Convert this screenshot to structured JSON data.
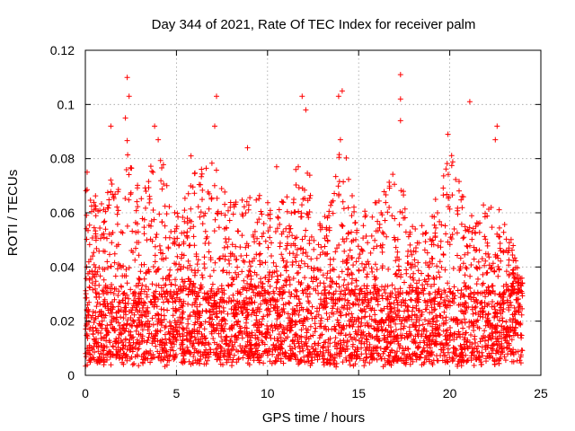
{
  "chart_data": {
    "type": "scatter",
    "title": "Day 344 of 2021, Rate Of TEC Index for receiver palm",
    "xlabel": "GPS time / hours",
    "ylabel": "ROTI / TECUs",
    "xlim": [
      0,
      25
    ],
    "ylim": [
      0,
      0.12
    ],
    "xticks": [
      0,
      5,
      10,
      15,
      20,
      25
    ],
    "xtick_labels": [
      "0",
      "5",
      "10",
      "15",
      "20",
      "25"
    ],
    "yticks": [
      0,
      0.02,
      0.04,
      0.06,
      0.08,
      0.1,
      0.12
    ],
    "ytick_labels": [
      "0",
      "0.02",
      "0.04",
      "0.06",
      "0.08",
      "0.1",
      "0.12"
    ],
    "grid": true,
    "marker": "+",
    "series": [
      {
        "name": "ROTI",
        "color": "#ff0000",
        "x_range": [
          0,
          24
        ],
        "typical_range": [
          0.005,
          0.03
        ],
        "peaks": [
          {
            "x": 2.3,
            "y": 0.11
          },
          {
            "x": 2.4,
            "y": 0.103
          },
          {
            "x": 2.2,
            "y": 0.095
          },
          {
            "x": 1.4,
            "y": 0.092
          },
          {
            "x": 3.8,
            "y": 0.092
          },
          {
            "x": 4.0,
            "y": 0.087
          },
          {
            "x": 7.2,
            "y": 0.103
          },
          {
            "x": 7.1,
            "y": 0.092
          },
          {
            "x": 8.9,
            "y": 0.084
          },
          {
            "x": 11.9,
            "y": 0.103
          },
          {
            "x": 12.1,
            "y": 0.098
          },
          {
            "x": 14.1,
            "y": 0.105
          },
          {
            "x": 13.9,
            "y": 0.103
          },
          {
            "x": 14.0,
            "y": 0.087
          },
          {
            "x": 17.3,
            "y": 0.111
          },
          {
            "x": 17.3,
            "y": 0.102
          },
          {
            "x": 17.3,
            "y": 0.094
          },
          {
            "x": 19.9,
            "y": 0.089
          },
          {
            "x": 21.1,
            "y": 0.101
          },
          {
            "x": 22.6,
            "y": 0.092
          },
          {
            "x": 22.5,
            "y": 0.087
          },
          {
            "x": 0.1,
            "y": 0.075
          },
          {
            "x": 5.8,
            "y": 0.081
          },
          {
            "x": 10.5,
            "y": 0.077
          }
        ],
        "activity_envelope": [
          {
            "x": 0,
            "y": 0.07
          },
          {
            "x": 1,
            "y": 0.065
          },
          {
            "x": 2,
            "y": 0.085
          },
          {
            "x": 2.5,
            "y": 0.09
          },
          {
            "x": 3,
            "y": 0.07
          },
          {
            "x": 4,
            "y": 0.085
          },
          {
            "x": 5,
            "y": 0.06
          },
          {
            "x": 6,
            "y": 0.075
          },
          {
            "x": 7,
            "y": 0.08
          },
          {
            "x": 8,
            "y": 0.065
          },
          {
            "x": 9,
            "y": 0.07
          },
          {
            "x": 10,
            "y": 0.065
          },
          {
            "x": 11,
            "y": 0.065
          },
          {
            "x": 12,
            "y": 0.085
          },
          {
            "x": 13,
            "y": 0.055
          },
          {
            "x": 14,
            "y": 0.09
          },
          {
            "x": 15,
            "y": 0.06
          },
          {
            "x": 16,
            "y": 0.065
          },
          {
            "x": 17,
            "y": 0.08
          },
          {
            "x": 18,
            "y": 0.055
          },
          {
            "x": 19,
            "y": 0.06
          },
          {
            "x": 20,
            "y": 0.085
          },
          {
            "x": 21,
            "y": 0.06
          },
          {
            "x": 22,
            "y": 0.065
          },
          {
            "x": 23,
            "y": 0.06
          },
          {
            "x": 24,
            "y": 0.035
          }
        ]
      }
    ]
  }
}
